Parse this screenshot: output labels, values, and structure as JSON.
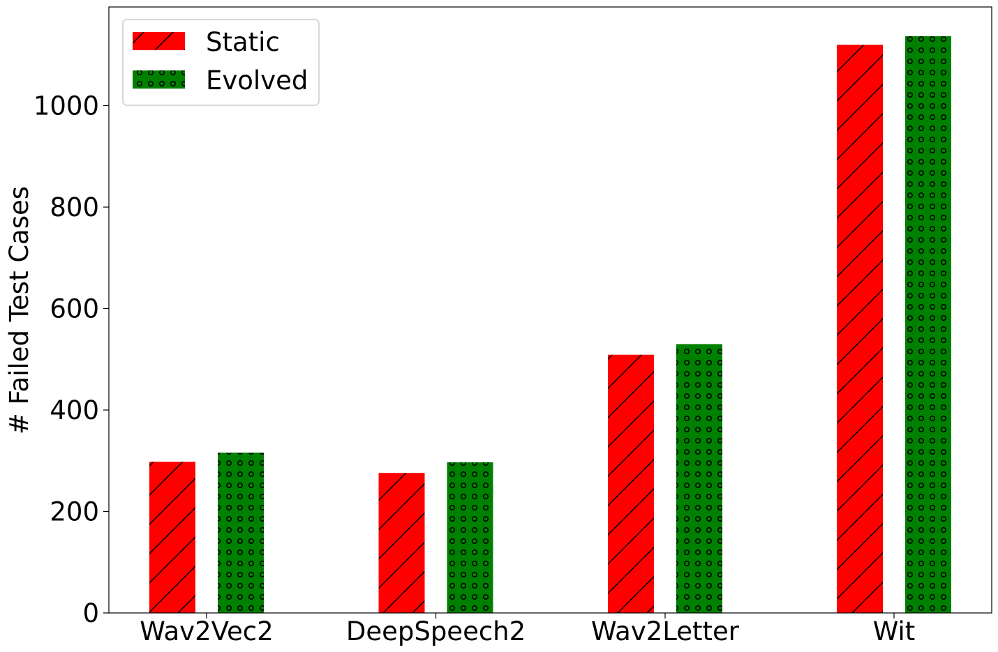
{
  "chart_data": {
    "type": "bar",
    "title": "",
    "xlabel": "",
    "ylabel": "# Failed Test Cases",
    "categories": [
      "Wav2Vec2",
      "DeepSpeech2",
      "Wav2Letter",
      "Wit"
    ],
    "series": [
      {
        "name": "Static",
        "values": [
          298,
          276,
          509,
          1120
        ],
        "color": "#ff0000",
        "pattern": "diagonal-hatch"
      },
      {
        "name": "Evolved",
        "values": [
          316,
          297,
          530,
          1137
        ],
        "color": "#008000",
        "pattern": "circle-dots"
      }
    ],
    "ylim": [
      0,
      1195
    ],
    "yticks": [
      0,
      200,
      400,
      600,
      800,
      1000
    ],
    "ytick_labels": [
      "0",
      "200",
      "400",
      "600",
      "800",
      "1000"
    ],
    "grid": false,
    "legend_position": "top-left"
  }
}
